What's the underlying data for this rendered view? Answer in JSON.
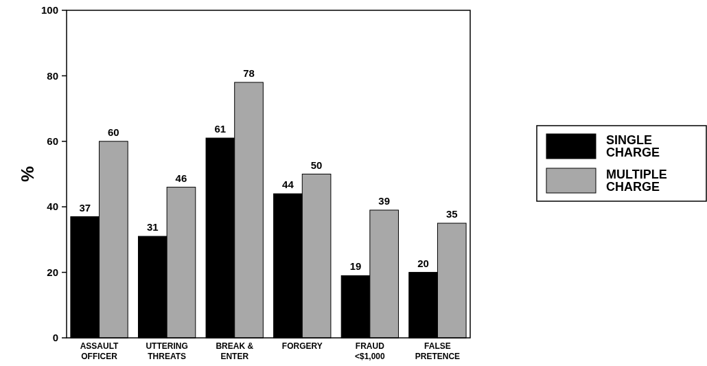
{
  "chart_data": {
    "type": "bar",
    "ylabel": "%",
    "categories": [
      "ASSAULT\nOFFICER",
      "UTTERING\nTHREATS",
      "BREAK &\nENTER",
      "FORGERY",
      "FRAUD\n<$1,000",
      "FALSE\nPRETENCE"
    ],
    "series": [
      {
        "name": "SINGLE\nCHARGE",
        "color": "#000000",
        "values": [
          37,
          31,
          61,
          44,
          19,
          20
        ]
      },
      {
        "name": "MULTIPLE\nCHARGE",
        "color": "#a8a8a8",
        "values": [
          60,
          46,
          78,
          50,
          39,
          35
        ]
      }
    ],
    "ylim": [
      0,
      100
    ],
    "yticks": [
      0,
      20,
      40,
      60,
      80,
      100
    ],
    "data_labels": true,
    "legend": "right"
  }
}
